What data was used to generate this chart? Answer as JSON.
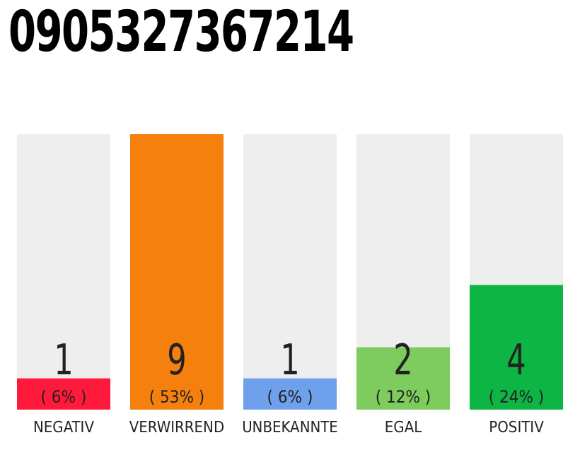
{
  "chart_data": {
    "type": "bar",
    "title": "0905327367214",
    "categories": [
      "NEGATIV",
      "VERWIRREND",
      "UNBEKANNTE",
      "EGAL",
      "POSITIV"
    ],
    "values": [
      6,
      53,
      6,
      12,
      24
    ],
    "colors": [
      "#ff1a3c",
      "#f5800d",
      "#6ea0ec",
      "#7ecb5e",
      "#0db544"
    ],
    "value_labels": [
      "( 6% )",
      "( 53% )",
      "( 6% )",
      "( 12% )",
      "( 24% )"
    ],
    "annotations": [
      "1",
      "9",
      "1",
      "2",
      "4"
    ],
    "tick_labels": "x"
  }
}
